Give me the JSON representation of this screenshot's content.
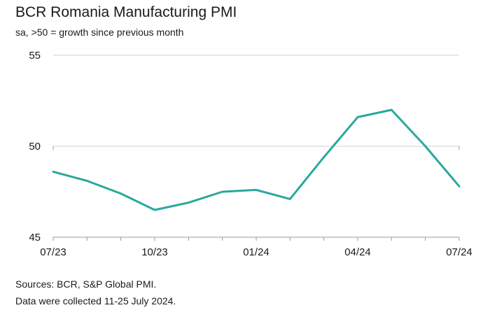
{
  "chart_data": {
    "type": "line",
    "title": "BCR Romania Manufacturing PMI",
    "subtitle": "sa, >50 = growth since previous month",
    "x": [
      "07/23",
      "08/23",
      "09/23",
      "10/23",
      "11/23",
      "12/23",
      "01/24",
      "02/24",
      "03/24",
      "04/24",
      "05/24",
      "06/24",
      "07/24"
    ],
    "x_tick_labels": [
      "07/23",
      "10/23",
      "01/24",
      "04/24",
      "07/24"
    ],
    "series": [
      {
        "values": [
          48.6,
          48.1,
          47.4,
          46.5,
          46.9,
          47.5,
          47.6,
          47.1,
          49.4,
          51.6,
          52.0,
          50.0,
          47.8
        ],
        "color": "#2aa89c"
      }
    ],
    "ylim": [
      45,
      55
    ],
    "y_ticks": [
      45,
      50,
      55
    ],
    "grid": "horizontal",
    "sources": "Sources: BCR, S&P Global PMI.",
    "note": "Data were collected 11-25 July 2024."
  }
}
